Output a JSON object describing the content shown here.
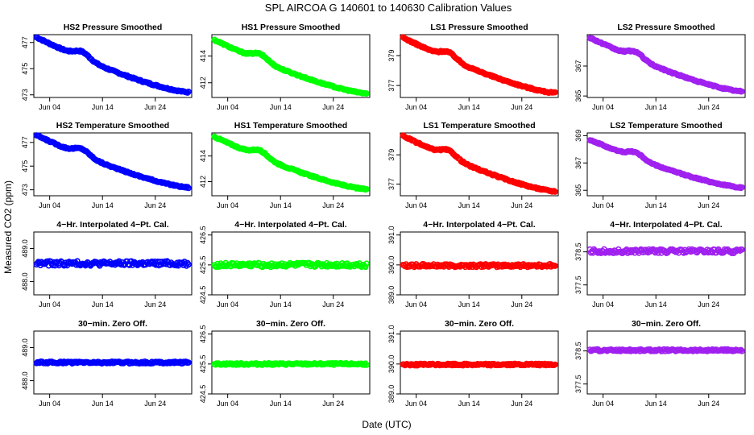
{
  "title": "SPL    AIRCOA G   140601 to 140630   Calibration Values",
  "xlabel": "Date (UTC)",
  "ylabel": "Measured CO2 (ppm)",
  "x_ticks": [
    "Jun 04",
    "Jun 14",
    "Jun 24"
  ],
  "x_range_days": [
    1,
    30.9
  ],
  "series_colors": {
    "HS2": "#0000ff",
    "HS1": "#00ff00",
    "LS1": "#ff0000",
    "LS2": "#a020f0"
  },
  "chart_data": [
    {
      "type": "scatter",
      "title": "HS2 Pressure Smoothed",
      "series": "HS2",
      "ylim": [
        472.8,
        477.6
      ],
      "yticks": [
        "473",
        "475",
        "477"
      ],
      "ytick_values": [
        473,
        475,
        477
      ],
      "start": 477.4,
      "end": 473.2,
      "trend": "smooth_decline"
    },
    {
      "type": "scatter",
      "title": "HS1 Pressure Smoothed",
      "series": "HS1",
      "ylim": [
        410.9,
        415.6
      ],
      "yticks": [
        "412",
        "414"
      ],
      "ytick_values": [
        412,
        414
      ],
      "start": 415.2,
      "end": 411.2,
      "trend": "smooth_decline"
    },
    {
      "type": "scatter",
      "title": "LS1 Pressure Smoothed",
      "series": "LS1",
      "ylim": [
        376.2,
        380.4
      ],
      "yticks": [
        "377",
        "379"
      ],
      "ytick_values": [
        377,
        379
      ],
      "start": 380.2,
      "end": 376.5,
      "trend": "smooth_decline"
    },
    {
      "type": "scatter",
      "title": "LS2 Pressure Smoothed",
      "series": "LS2",
      "ylim": [
        364.9,
        369.1
      ],
      "yticks": [
        "365",
        "367"
      ],
      "ytick_values": [
        365,
        367
      ],
      "start": 368.9,
      "end": 365.3,
      "trend": "smooth_decline"
    },
    {
      "type": "scatter",
      "title": "HS2 Temperature Smoothed",
      "series": "HS2",
      "ylim": [
        472.5,
        477.8
      ],
      "yticks": [
        "473",
        "475",
        "477"
      ],
      "ytick_values": [
        473,
        475,
        477
      ],
      "start": 477.6,
      "end": 473.2,
      "trend": "smooth_decline"
    },
    {
      "type": "scatter",
      "title": "HS1 Temperature Smoothed",
      "series": "HS1",
      "ylim": [
        410.9,
        415.8
      ],
      "yticks": [
        "412",
        "414"
      ],
      "ytick_values": [
        412,
        414
      ],
      "start": 415.5,
      "end": 411.4,
      "trend": "smooth_decline"
    },
    {
      "type": "scatter",
      "title": "LS1 Temperature Smoothed",
      "series": "LS1",
      "ylim": [
        376.2,
        380.5
      ],
      "yticks": [
        "377",
        "379"
      ],
      "ytick_values": [
        377,
        379
      ],
      "start": 380.3,
      "end": 376.5,
      "trend": "smooth_decline"
    },
    {
      "type": "scatter",
      "title": "LS2 Temperature Smoothed",
      "series": "LS2",
      "ylim": [
        364.6,
        369.2
      ],
      "yticks": [
        "365",
        "367",
        "369"
      ],
      "ytick_values": [
        365,
        367,
        369
      ],
      "start": 368.7,
      "end": 365.2,
      "trend": "smooth_decline"
    },
    {
      "type": "scatter",
      "title": "4−Hr. Interpolated 4−Pt. Cal.",
      "series": "HS2",
      "ylim": [
        487.6,
        489.5
      ],
      "yticks": [
        "488.0",
        "489.0"
      ],
      "ytick_values": [
        488,
        489
      ],
      "start": 488.55,
      "end": 488.55,
      "noise": 0.07,
      "trend": "flat"
    },
    {
      "type": "scatter",
      "title": "4−Hr. Interpolated 4−Pt. Cal.",
      "series": "HS1",
      "ylim": [
        424.5,
        426.6
      ],
      "yticks": [
        "424.5",
        "425.5",
        "426.5"
      ],
      "ytick_values": [
        424.5,
        425.5,
        426.5
      ],
      "start": 425.5,
      "end": 425.5,
      "noise": 0.07,
      "trend": "flat"
    },
    {
      "type": "scatter",
      "title": "4−Hr. Interpolated 4−Pt. Cal.",
      "series": "LS1",
      "ylim": [
        389.0,
        391.1
      ],
      "yticks": [
        "389.0",
        "390.0",
        "391.0"
      ],
      "ytick_values": [
        389,
        390,
        391
      ],
      "start": 389.98,
      "end": 389.98,
      "noise": 0.05,
      "trend": "flat"
    },
    {
      "type": "scatter",
      "title": "4−Hr. Interpolated 4−Pt. Cal.",
      "series": "LS2",
      "ylim": [
        377.2,
        379.1
      ],
      "yticks": [
        "377.5",
        "378.5"
      ],
      "ytick_values": [
        377.5,
        378.5
      ],
      "start": 378.52,
      "end": 378.52,
      "noise": 0.06,
      "trend": "flat"
    },
    {
      "type": "scatter",
      "title": "30−min. Zero Off.",
      "series": "HS2",
      "ylim": [
        487.6,
        489.5
      ],
      "yticks": [
        "488.0",
        "489.0"
      ],
      "ytick_values": [
        488,
        489
      ],
      "start": 488.55,
      "end": 488.55,
      "noise": 0.03,
      "trend": "flat"
    },
    {
      "type": "scatter",
      "title": "30−min. Zero Off.",
      "series": "HS1",
      "ylim": [
        424.5,
        426.6
      ],
      "yticks": [
        "424.5",
        "425.5",
        "426.5"
      ],
      "ytick_values": [
        424.5,
        425.5,
        426.5
      ],
      "start": 425.5,
      "end": 425.5,
      "noise": 0.03,
      "trend": "flat"
    },
    {
      "type": "scatter",
      "title": "30−min. Zero Off.",
      "series": "LS1",
      "ylim": [
        389.0,
        391.1
      ],
      "yticks": [
        "389.0",
        "390.0",
        "391.0"
      ],
      "ytick_values": [
        389,
        390,
        391
      ],
      "start": 389.98,
      "end": 389.98,
      "noise": 0.03,
      "trend": "flat"
    },
    {
      "type": "scatter",
      "title": "30−min. Zero Off.",
      "series": "LS2",
      "ylim": [
        377.2,
        379.1
      ],
      "yticks": [
        "377.5",
        "378.5"
      ],
      "ytick_values": [
        377.5,
        378.5
      ],
      "start": 378.52,
      "end": 378.52,
      "noise": 0.03,
      "trend": "flat"
    }
  ]
}
